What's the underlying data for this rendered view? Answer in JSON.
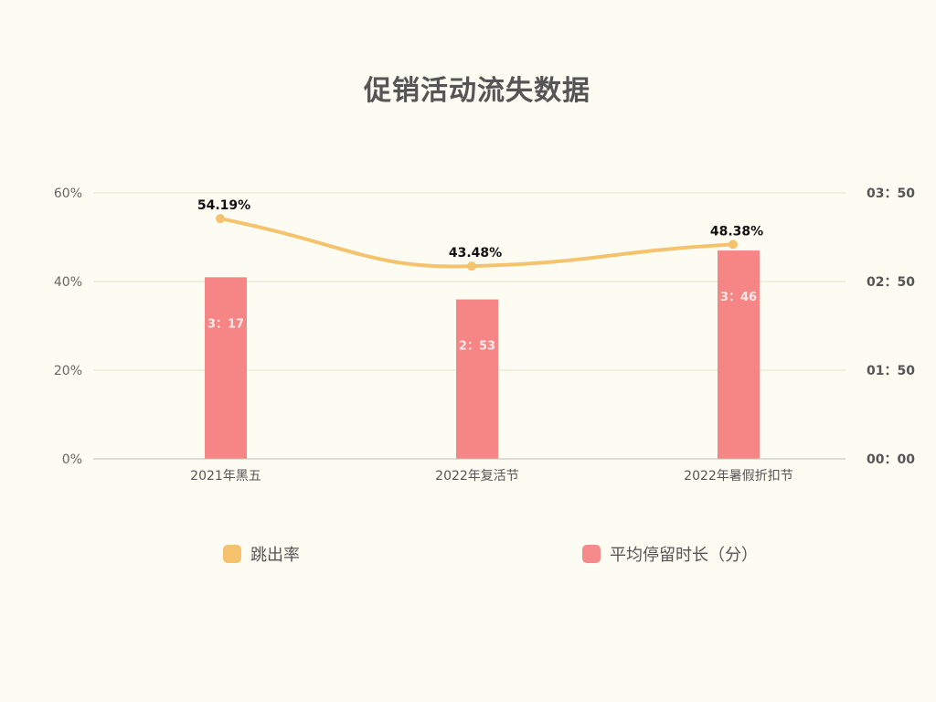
{
  "chart_data": {
    "type": "bar",
    "title": "促销活动流失数据",
    "categories": [
      "2021年黑五",
      "2022年复活节",
      "2022年暑假折扣节"
    ],
    "series": [
      {
        "name": "平均停留时长（分）",
        "type": "bar",
        "axis": "right",
        "values_minutes": [
          3.283,
          2.883,
          3.767
        ],
        "labels": [
          "3：17",
          "2：53",
          "3：46"
        ],
        "color": "#f47c7c"
      },
      {
        "name": "跳出率",
        "type": "line",
        "axis": "left",
        "values": [
          54.19,
          43.48,
          48.38
        ],
        "labels": [
          "54.19%",
          "43.48%",
          "48.38%"
        ],
        "color": "#f5c36e"
      }
    ],
    "y_left": {
      "ticks": [
        "0%",
        "20%",
        "40%",
        "60%"
      ],
      "range": [
        0,
        60
      ]
    },
    "y_right": {
      "ticks": [
        "00：00",
        "01：50",
        "02：50",
        "03：50"
      ]
    },
    "grid": true,
    "legend": "bottom"
  }
}
